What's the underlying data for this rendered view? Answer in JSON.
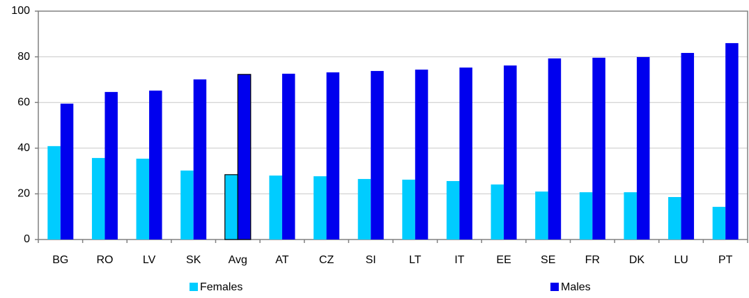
{
  "chart_data": {
    "type": "bar",
    "categories": [
      "BG",
      "RO",
      "LV",
      "SK",
      "Avg",
      "AT",
      "CZ",
      "SI",
      "LT",
      "IT",
      "EE",
      "SE",
      "FR",
      "DK",
      "LU",
      "PT"
    ],
    "series": [
      {
        "name": "Females",
        "color": "#00ccff",
        "values": [
          40.9,
          35.7,
          35.4,
          30.2,
          28.4,
          28,
          27.7,
          26.5,
          26.2,
          25.6,
          24.1,
          21,
          20.7,
          20.7,
          18.6,
          14.3
        ]
      },
      {
        "name": "Males",
        "color": "#0000ee",
        "values": [
          59.5,
          64.6,
          65.2,
          70.1,
          72.3,
          72.6,
          73.2,
          73.8,
          74.4,
          75.3,
          76.2,
          79.3,
          79.6,
          79.9,
          81.7,
          86
        ]
      }
    ],
    "highlight_category": 4,
    "highlight_edge_color": "#000000",
    "ylim": [
      0,
      100
    ],
    "yticks": [
      0,
      20,
      40,
      60,
      80,
      100
    ],
    "grid": true,
    "legend": "bottom"
  }
}
